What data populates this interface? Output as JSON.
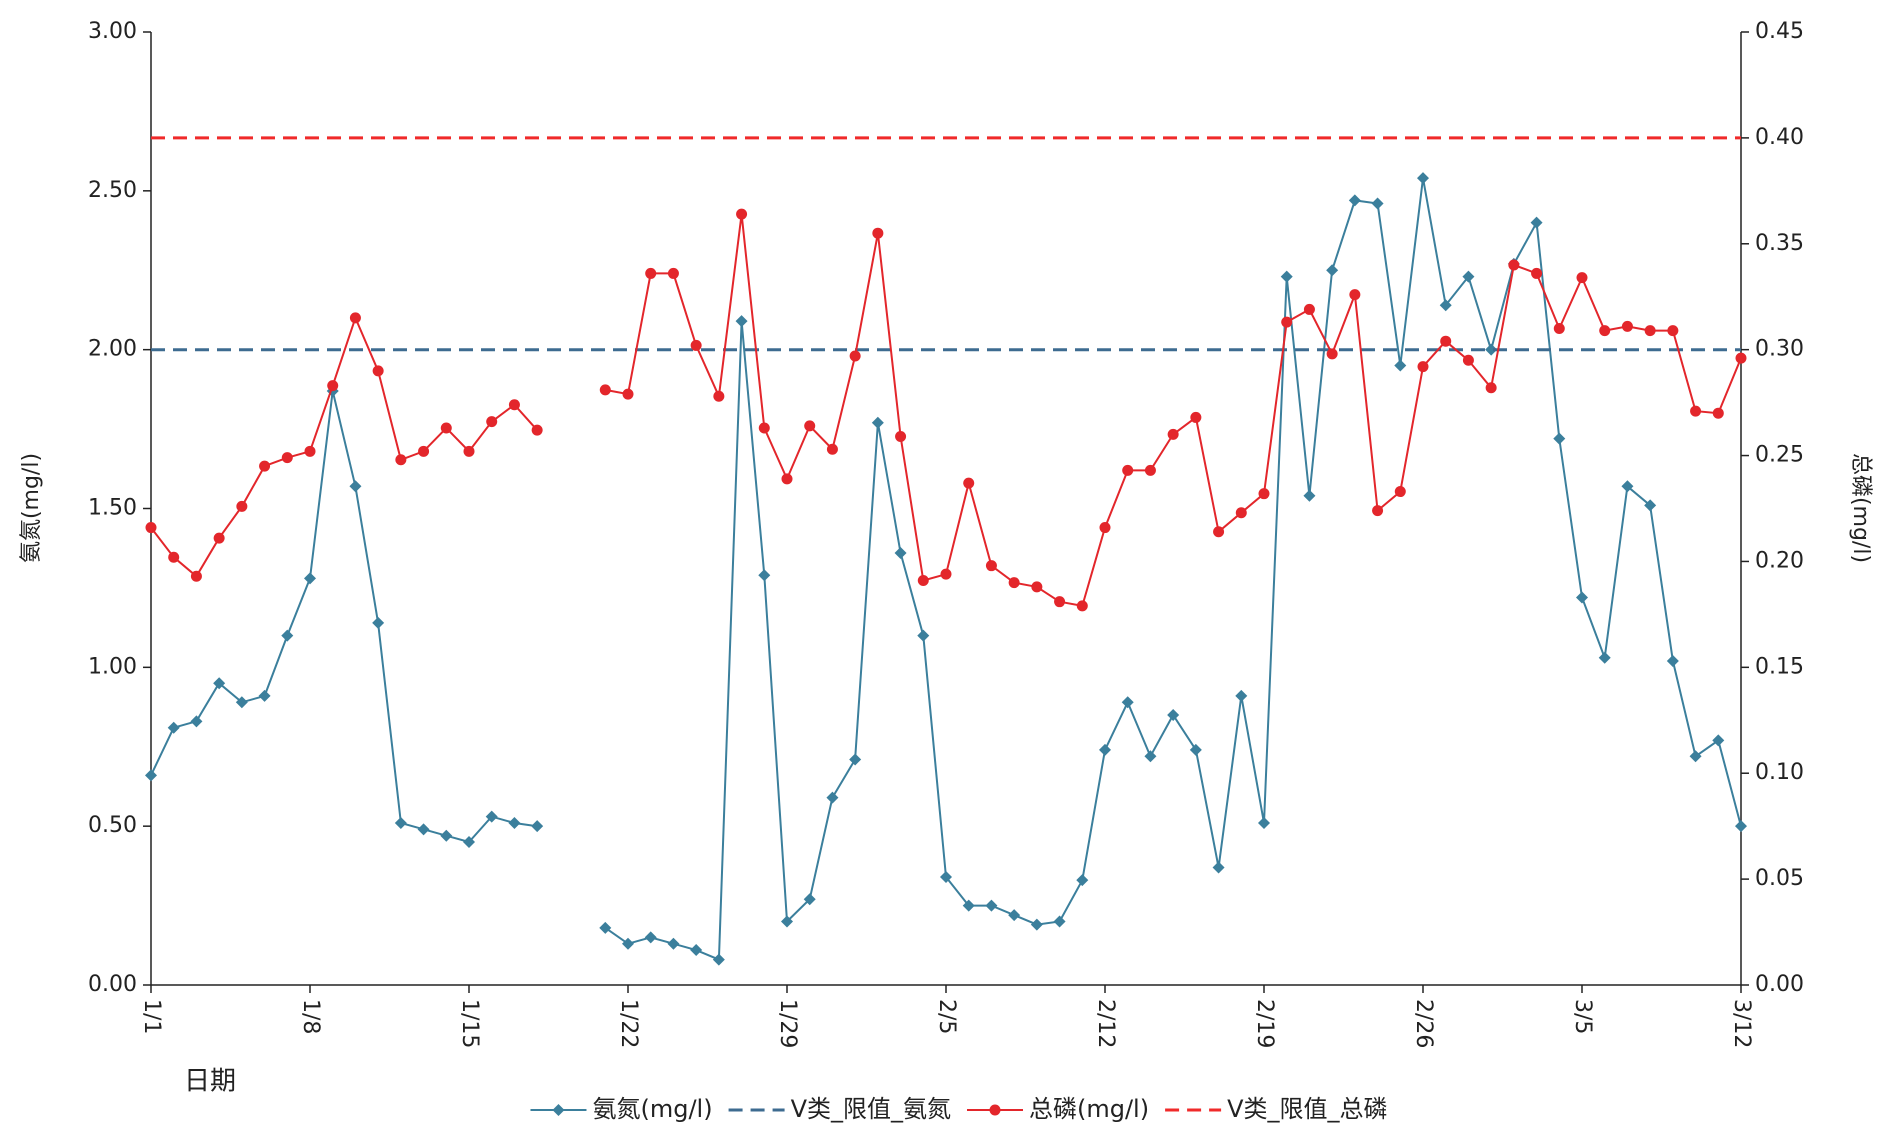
{
  "chart_data": {
    "type": "line",
    "xlabel": "日期",
    "ylabel": "氨氮(mg/l)",
    "y2label": "总磷(mg/l)",
    "categories": [
      "1/1",
      null,
      null,
      null,
      null,
      null,
      null,
      "1/8",
      null,
      null,
      null,
      null,
      null,
      null,
      "1/15",
      null,
      null,
      null,
      null,
      null,
      null,
      "1/22",
      null,
      null,
      null,
      null,
      null,
      null,
      "1/29",
      null,
      null,
      null,
      null,
      null,
      null,
      "2/5",
      null,
      null,
      null,
      null,
      null,
      null,
      "2/12",
      null,
      null,
      null,
      null,
      null,
      null,
      "2/19",
      null,
      null,
      null,
      null,
      null,
      null,
      "2/26",
      null,
      null,
      null,
      null,
      null,
      null,
      "3/5",
      null,
      null,
      null,
      null,
      null,
      null,
      "3/12"
    ],
    "ylim": [
      0,
      3
    ],
    "yticks": [
      {
        "value": 0,
        "label": "0.00"
      },
      {
        "value": 0.5,
        "label": "0.50"
      },
      {
        "value": 1,
        "label": "1.00"
      },
      {
        "value": 1.5,
        "label": "1.50"
      },
      {
        "value": 2,
        "label": "2.00"
      },
      {
        "value": 2.5,
        "label": "2.50"
      },
      {
        "value": 3,
        "label": "3.00"
      }
    ],
    "y2lim": [
      0,
      0.45
    ],
    "y2ticks": [
      {
        "value": 0,
        "label": "0.00"
      },
      {
        "value": 0.05,
        "label": "0.05"
      },
      {
        "value": 0.1,
        "label": "0.10"
      },
      {
        "value": 0.15,
        "label": "0.15"
      },
      {
        "value": 0.2,
        "label": "0.20"
      },
      {
        "value": 0.25,
        "label": "0.25"
      },
      {
        "value": 0.3,
        "label": "0.30"
      },
      {
        "value": 0.35,
        "label": "0.35"
      },
      {
        "value": 0.4,
        "label": "0.40"
      },
      {
        "value": 0.45,
        "label": "0.45"
      }
    ],
    "legend": "bottom",
    "series": [
      {
        "name": "氨氮(mg/l)",
        "color": "#3b7f9c",
        "marker": "diamond",
        "dash": false,
        "values": [
          0.66,
          0.81,
          0.83,
          0.95,
          0.89,
          0.91,
          1.1,
          1.28,
          1.87,
          1.57,
          1.14,
          0.51,
          0.49,
          0.47,
          0.45,
          0.53,
          0.51,
          0.5,
          null,
          null,
          0.18,
          0.13,
          0.15,
          0.13,
          0.11,
          0.08,
          2.09,
          1.29,
          0.2,
          0.27,
          0.59,
          0.71,
          1.77,
          1.36,
          1.1,
          0.34,
          0.25,
          0.25,
          0.22,
          0.19,
          0.2,
          0.33,
          0.74,
          0.89,
          0.72,
          0.85,
          0.74,
          0.37,
          0.91,
          0.51,
          2.23,
          1.54,
          2.25,
          2.47,
          2.46,
          1.95,
          2.54,
          2.14,
          2.23,
          2.0,
          2.27,
          2.4,
          1.72,
          1.22,
          1.03,
          1.57,
          1.51,
          1.02,
          0.72,
          0.77,
          0.5
        ]
      },
      {
        "name": "V类_限值_氨氮",
        "color": "#3d6b90",
        "marker": null,
        "dash": true,
        "values": [
          2,
          2,
          2,
          2,
          2,
          2,
          2,
          2,
          2,
          2,
          2,
          2,
          2,
          2,
          2,
          2,
          2,
          2,
          2,
          2,
          2,
          2,
          2,
          2,
          2,
          2,
          2,
          2,
          2,
          2,
          2,
          2,
          2,
          2,
          2,
          2,
          2,
          2,
          2,
          2,
          2,
          2,
          2,
          2,
          2,
          2,
          2,
          2,
          2,
          2,
          2,
          2,
          2,
          2,
          2,
          2,
          2,
          2,
          2,
          2,
          2,
          2,
          2,
          2,
          2,
          2,
          2,
          2,
          2,
          2,
          2
        ]
      },
      {
        "name": "总磷(mg/l)",
        "color": "#e3262b",
        "marker": "circle",
        "dash": false,
        "axis": "y2",
        "values": [
          0.216,
          0.202,
          0.193,
          0.211,
          0.226,
          0.245,
          0.249,
          0.252,
          0.283,
          0.315,
          0.29,
          0.248,
          0.252,
          0.263,
          0.252,
          0.266,
          0.274,
          0.262,
          null,
          null,
          0.281,
          0.279,
          0.336,
          0.336,
          0.302,
          0.278,
          0.364,
          0.263,
          0.239,
          0.264,
          0.253,
          0.297,
          0.355,
          0.259,
          0.191,
          0.194,
          0.237,
          0.198,
          0.19,
          0.188,
          0.181,
          0.179,
          0.216,
          0.243,
          0.243,
          0.26,
          0.268,
          0.214,
          0.223,
          0.232,
          0.313,
          0.319,
          0.298,
          0.326,
          0.224,
          0.233,
          0.292,
          0.304,
          0.295,
          0.282,
          0.34,
          0.336,
          0.31,
          0.334,
          0.309,
          0.311,
          0.309,
          0.309,
          0.271,
          0.27,
          0.296
        ]
      },
      {
        "name": "V类_限值_总磷",
        "color": "#f02a2a",
        "marker": null,
        "dash": true,
        "axis": "y2",
        "values": [
          0.4,
          0.4,
          0.4,
          0.4,
          0.4,
          0.4,
          0.4,
          0.4,
          0.4,
          0.4,
          0.4,
          0.4,
          0.4,
          0.4,
          0.4,
          0.4,
          0.4,
          0.4,
          0.4,
          0.4,
          0.4,
          0.4,
          0.4,
          0.4,
          0.4,
          0.4,
          0.4,
          0.4,
          0.4,
          0.4,
          0.4,
          0.4,
          0.4,
          0.4,
          0.4,
          0.4,
          0.4,
          0.4,
          0.4,
          0.4,
          0.4,
          0.4,
          0.4,
          0.4,
          0.4,
          0.4,
          0.4,
          0.4,
          0.4,
          0.4,
          0.4,
          0.4,
          0.4,
          0.4,
          0.4,
          0.4,
          0.4,
          0.4,
          0.4,
          0.4,
          0.4,
          0.4,
          0.4,
          0.4,
          0.4,
          0.4,
          0.4,
          0.4,
          0.4,
          0.4,
          0.4
        ]
      }
    ]
  }
}
